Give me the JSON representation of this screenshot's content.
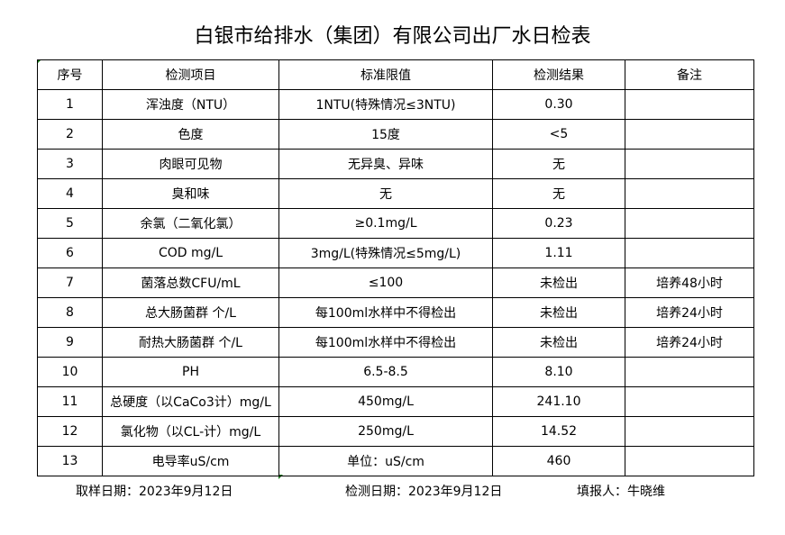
{
  "title": "白银市给排水（集团）有限公司出厂水日检表",
  "headers": [
    "序号",
    "检测项目",
    "标准限值",
    "检测结果",
    "备注"
  ],
  "rows": [
    [
      "1",
      "浑浊度（NTU）",
      "1NTU(特殊情况≤3NTU)",
      "0.30",
      ""
    ],
    [
      "2",
      "色度",
      "15度",
      "<5",
      ""
    ],
    [
      "3",
      "肉眼可见物",
      "无异臭、异味",
      "无",
      ""
    ],
    [
      "4",
      "臭和味",
      "无",
      "无",
      ""
    ],
    [
      "5",
      "余氯（二氧化氯）",
      "≥0.1mg/L",
      "0.23",
      ""
    ],
    [
      "6",
      "COD        mg/L",
      "3mg/L(特殊情况≤5mg/L)",
      "1.11",
      ""
    ],
    [
      "7",
      "菌落总数CFU/mL",
      "≤100",
      "未检出",
      "培养48小时"
    ],
    [
      "8",
      "总大肠菌群 个/L",
      "每100ml水样中不得检出",
      "未检出",
      "培养24小时"
    ],
    [
      "9",
      "耐热大肠菌群 个/L",
      "每100ml水样中不得检出",
      "未检出",
      "培养24小时"
    ],
    [
      "10",
      "PH",
      "6.5-8.5",
      "8.10",
      ""
    ],
    [
      "11",
      "总硬度（以CaCo3计）mg/L",
      "450mg/L",
      "241.10",
      ""
    ],
    [
      "12",
      "氯化物（以CL-计）mg/L",
      "250mg/L",
      "14.52",
      ""
    ],
    [
      "13",
      "电导率uS/cm",
      "单位：uS/cm",
      "460",
      ""
    ]
  ],
  "footer": {
    "sample_date": "取样日期：2023年9月12日",
    "test_date": "检测日期：2023年9月12日",
    "reporter": "填报人：牛晓维"
  }
}
